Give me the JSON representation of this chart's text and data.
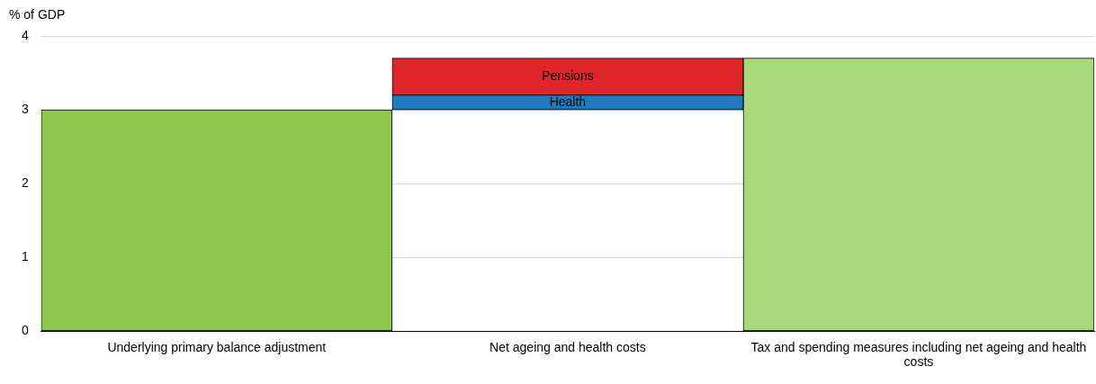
{
  "chart_data": {
    "type": "bar",
    "ylabel": "% of GDP",
    "categories": [
      "Underlying primary balance adjustment",
      "Net ageing and health costs",
      "Tax and spending measures including net ageing and health costs"
    ],
    "series": [
      {
        "color": "#8cc84b",
        "values": [
          3,
          null,
          null
        ]
      },
      {
        "name": "Health",
        "color": "#1f7bc0",
        "values": [
          null,
          0.2,
          null
        ],
        "base": [
          null,
          3,
          null
        ]
      },
      {
        "name": "Pensions",
        "color": "#e0242b",
        "values": [
          null,
          0.5,
          null
        ],
        "base": [
          null,
          3.2,
          null
        ]
      },
      {
        "color": "#a8d87a",
        "values": [
          null,
          null,
          3.7
        ]
      }
    ],
    "ylim": [
      0,
      4
    ],
    "yticks": [
      0,
      1,
      2,
      3,
      4
    ],
    "grid": "y",
    "legend": false
  }
}
